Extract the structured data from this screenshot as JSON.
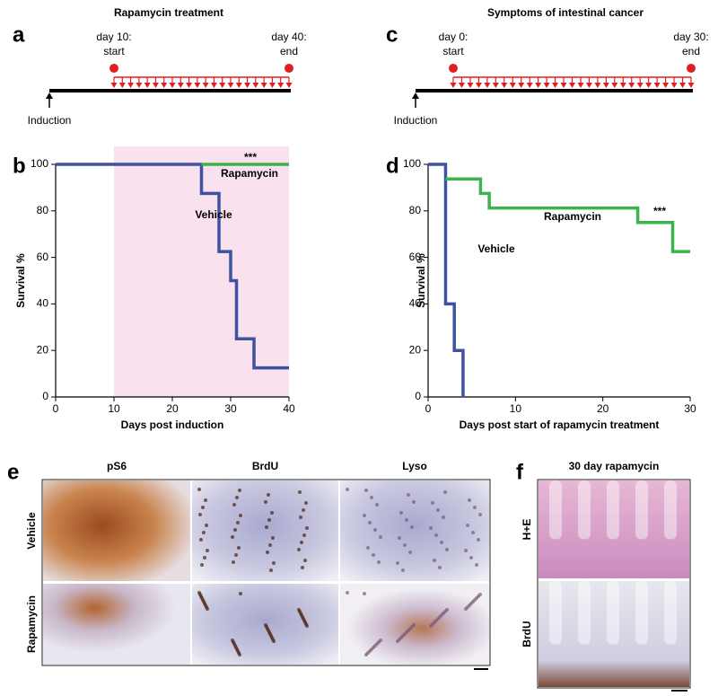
{
  "timelines": [
    {
      "letter": "a",
      "title": "Rapamycin treatment",
      "start": [
        "day 10:",
        "start"
      ],
      "end": [
        "day 40:",
        "end"
      ],
      "origin": "Induction"
    },
    {
      "letter": "c",
      "title": "Symptoms of intestinal cancer",
      "start": [
        "day 0:",
        "start"
      ],
      "end": [
        "day 30:",
        "end"
      ],
      "origin": "Induction"
    }
  ],
  "chart_data": [
    {
      "letter": "b",
      "type": "line",
      "xlabel": "Days post induction",
      "ylabel": "Survival %",
      "xlim": [
        0,
        40
      ],
      "ylim": [
        0,
        100
      ],
      "xticks": [
        0,
        10,
        20,
        30,
        40
      ],
      "yticks": [
        0,
        20,
        40,
        60,
        80,
        100
      ],
      "shaded_x": [
        10,
        40
      ],
      "shade_color": "#f9e1ee",
      "series": [
        {
          "name": "Vehicle",
          "color": "#3f51a3",
          "x": [
            0,
            25,
            25,
            28,
            28,
            30,
            30,
            31,
            31,
            34,
            34,
            40
          ],
          "values": [
            100,
            100,
            87.5,
            87.5,
            62.5,
            62.5,
            50,
            50,
            25,
            25,
            12.5,
            12.5
          ]
        },
        {
          "name": "Rapamycin",
          "color": "#3cb44b",
          "x": [
            25,
            40
          ],
          "values": [
            100,
            100
          ]
        }
      ],
      "annotation": "***"
    },
    {
      "letter": "d",
      "type": "line",
      "xlabel": "Days post start of rapamycin treatment",
      "ylabel": "Survival %",
      "xlim": [
        0,
        30
      ],
      "ylim": [
        0,
        100
      ],
      "xticks": [
        0,
        10,
        20,
        30
      ],
      "yticks": [
        0,
        20,
        40,
        60,
        80,
        100
      ],
      "series": [
        {
          "name": "Vehicle",
          "color": "#3f51a3",
          "x": [
            0,
            2,
            2,
            3,
            3,
            4,
            4
          ],
          "values": [
            100,
            100,
            40,
            40,
            20,
            20,
            0
          ]
        },
        {
          "name": "Rapamycin",
          "color": "#3cb44b",
          "x": [
            2,
            6,
            6,
            7,
            7,
            24,
            24,
            28,
            28,
            30
          ],
          "values": [
            93.75,
            93.75,
            87.5,
            87.5,
            81.25,
            81.25,
            75,
            75,
            62.5,
            62.5
          ]
        }
      ],
      "annotation": "***"
    }
  ],
  "micrographs": [
    {
      "letter": "e",
      "columns": [
        "pS6",
        "BrdU",
        "Lyso"
      ],
      "rows": [
        "Vehicle",
        "Rapamycin"
      ]
    },
    {
      "letter": "f",
      "title": "30 day rapamycin",
      "rows": [
        "H+E",
        "BrdU"
      ]
    }
  ]
}
